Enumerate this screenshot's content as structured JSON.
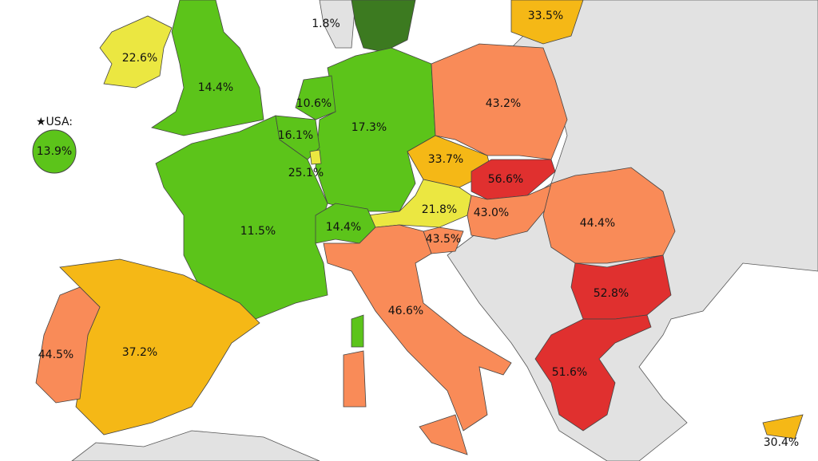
{
  "regions": [
    {
      "label": "1.8%",
      "color": "#3c7a20"
    },
    {
      "label": "33.5%",
      "color": "#f5b816"
    },
    {
      "label": "22.6%",
      "color": "#ebe741"
    },
    {
      "label": "14.4%",
      "color": "#5cc41a"
    },
    {
      "label": "10.6%",
      "color": "#5cc41a"
    },
    {
      "label": "17.3%",
      "color": "#5cc41a"
    },
    {
      "label": "43.2%",
      "color": "#f98b58"
    },
    {
      "label": "16.1%",
      "color": "#5cc41a"
    },
    {
      "label": "33.7%",
      "color": "#f5b816"
    },
    {
      "label": "56.6%",
      "color": "#e0302f"
    },
    {
      "label": "25.1%",
      "color": "#ebe741"
    },
    {
      "label": "21.8%",
      "color": "#ebe741"
    },
    {
      "label": "43.0%",
      "color": "#f98b58"
    },
    {
      "label": "44.4%",
      "color": "#f98b58"
    },
    {
      "label": "11.5%",
      "color": "#5cc41a"
    },
    {
      "label": "14.4%",
      "color": "#5cc41a"
    },
    {
      "label": "43.5%",
      "color": "#f98b58"
    },
    {
      "label": "52.8%",
      "color": "#e0302f"
    },
    {
      "label": "46.6%",
      "color": "#f98b58"
    },
    {
      "label": "44.5%",
      "color": "#f98b58"
    },
    {
      "label": "37.2%",
      "color": "#f5b816"
    },
    {
      "label": "51.6%",
      "color": "#e0302f"
    },
    {
      "label": "30.4%",
      "color": "#f5b816"
    }
  ],
  "usa": {
    "title": "★USA:",
    "label": "13.9%",
    "color": "#5cc41a"
  }
}
